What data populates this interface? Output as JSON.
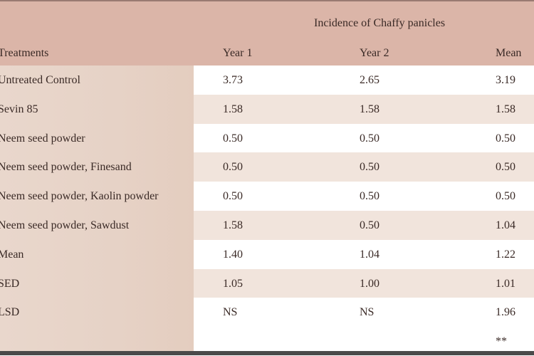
{
  "table": {
    "group_header": "Incidence of Chaffy panicles",
    "columns": [
      "Treatments",
      "Year 1",
      "Year 2",
      "Mean"
    ],
    "rows": [
      {
        "treatment": "Untreated Control",
        "year1": "3.73",
        "year2": "2.65",
        "mean": "3.19"
      },
      {
        "treatment": "Sevin 85",
        "year1": "1.58",
        "year2": "1.58",
        "mean": "1.58"
      },
      {
        "treatment": "Neem seed powder",
        "year1": "0.50",
        "year2": "0.50",
        "mean": "0.50"
      },
      {
        "treatment": "Neem seed powder, Finesand",
        "year1": "0.50",
        "year2": "0.50",
        "mean": "0.50"
      },
      {
        "treatment": "Neem seed powder, Kaolin powder",
        "year1": "0.50",
        "year2": "0.50",
        "mean": "0.50"
      },
      {
        "treatment": "Neem seed powder, Sawdust",
        "year1": "1.58",
        "year2": "0.50",
        "mean": "1.04"
      },
      {
        "treatment": "Mean",
        "year1": "1.40",
        "year2": "1.04",
        "mean": "1.22"
      },
      {
        "treatment": "SED",
        "year1": "1.05",
        "year2": "1.00",
        "mean": "1.01"
      },
      {
        "treatment": "LSD",
        "year1": "NS",
        "year2": "NS",
        "mean": "1.96"
      },
      {
        "treatment": "",
        "year1": "",
        "year2": "",
        "mean": "**"
      }
    ]
  },
  "colors": {
    "header_bg": "#dbb5a8",
    "first_col_bg": "#e6d2c6",
    "alt_row_bg": "#f1e4dc",
    "text": "#3a2a26"
  }
}
